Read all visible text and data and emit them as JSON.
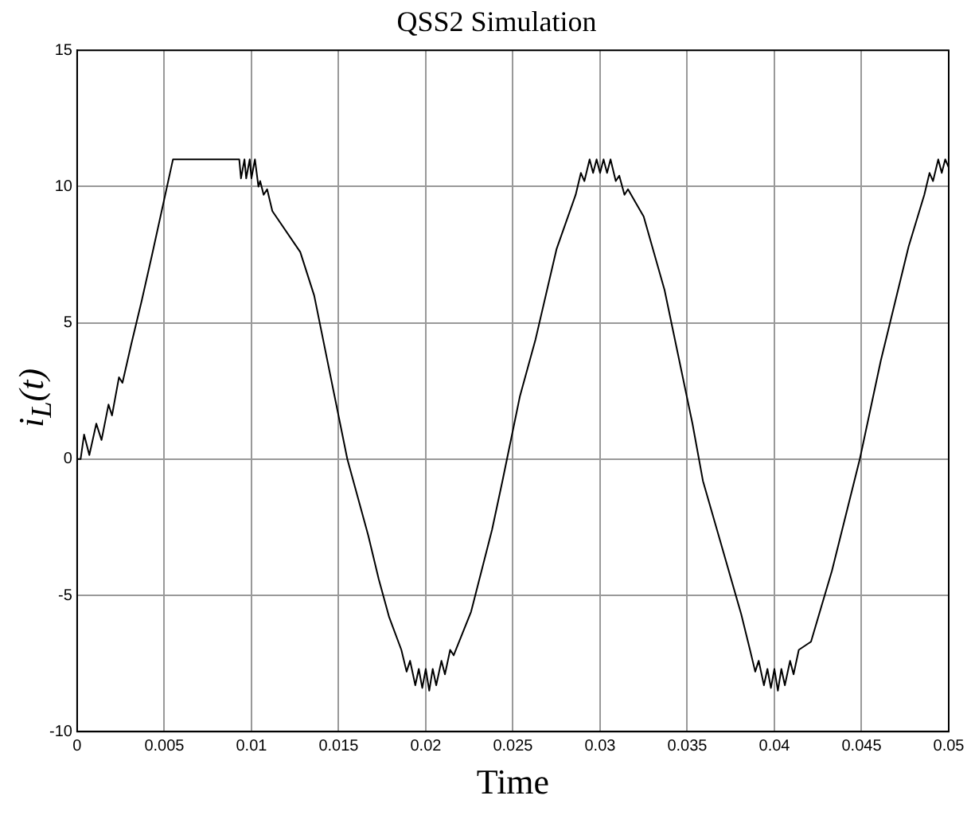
{
  "chart_data": {
    "type": "line",
    "title": "QSS2 Simulation",
    "xlabel": "Time",
    "ylabel": "i$_{L}$(t)",
    "xlim": [
      0,
      0.05
    ],
    "xticks": [
      0,
      0.005,
      0.01,
      0.015,
      0.02,
      0.025,
      0.03,
      0.035,
      0.04,
      0.045,
      0.05
    ],
    "ylim": [
      -10,
      15
    ],
    "yticks": [
      -10,
      -5,
      0,
      5,
      10,
      15
    ],
    "grid": true,
    "marker": "none",
    "line_style": "solid",
    "series": [
      {
        "color": "#000000",
        "x": [
          0,
          0.0002,
          0.0004,
          0.0007,
          0.0011,
          0.0014,
          0.0018,
          0.002,
          0.0024,
          0.0026,
          0.0031,
          0.0037,
          0.0043,
          0.0055,
          0.0093,
          0.0094,
          0.0096,
          0.0097,
          0.0099,
          0.01,
          0.0102,
          0.0104,
          0.0105,
          0.0107,
          0.0109,
          0.0112,
          0.0128,
          0.0136,
          0.0155,
          0.0167,
          0.0173,
          0.0179,
          0.0186,
          0.0189,
          0.0191,
          0.0194,
          0.0196,
          0.0198,
          0.02,
          0.0202,
          0.0204,
          0.0206,
          0.0209,
          0.0211,
          0.0214,
          0.0216,
          0.0226,
          0.0238,
          0.0244,
          0.0254,
          0.0263,
          0.0275,
          0.0286,
          0.0289,
          0.0291,
          0.0294,
          0.0296,
          0.0298,
          0.03,
          0.0302,
          0.0304,
          0.0306,
          0.0309,
          0.0311,
          0.0314,
          0.0316,
          0.0325,
          0.0337,
          0.0353,
          0.0359,
          0.0368,
          0.0381,
          0.0386,
          0.0389,
          0.0391,
          0.0394,
          0.0396,
          0.0398,
          0.04,
          0.0402,
          0.0404,
          0.0406,
          0.0409,
          0.0411,
          0.0414,
          0.0421,
          0.0433,
          0.0449,
          0.0461,
          0.0477,
          0.0486,
          0.0489,
          0.0491,
          0.0494,
          0.0496,
          0.0498,
          0.05
        ],
        "values": [
          0,
          0,
          0.9,
          0.15,
          1.3,
          0.7,
          2,
          1.6,
          3,
          2.8,
          4.2,
          5.8,
          7.5,
          11,
          11,
          10.3,
          11,
          10.3,
          11,
          10.3,
          11,
          10,
          10.2,
          9.7,
          9.9,
          9.1,
          7.6,
          6,
          0,
          -2.8,
          -4.4,
          -5.8,
          -7,
          -7.8,
          -7.4,
          -8.3,
          -7.7,
          -8.4,
          -7.7,
          -8.5,
          -7.7,
          -8.3,
          -7.4,
          -7.9,
          -7,
          -7.2,
          -5.6,
          -2.6,
          -0.8,
          2.3,
          4.4,
          7.7,
          9.7,
          10.5,
          10.2,
          11,
          10.5,
          11,
          10.5,
          11,
          10.5,
          11,
          10.2,
          10.4,
          9.7,
          9.9,
          8.9,
          6.2,
          1.3,
          -0.8,
          -2.8,
          -5.7,
          -7,
          -7.8,
          -7.4,
          -8.3,
          -7.7,
          -8.4,
          -7.7,
          -8.5,
          -7.7,
          -8.3,
          -7.4,
          -7.9,
          -7,
          -6.7,
          -4.1,
          0,
          3.6,
          7.8,
          9.7,
          10.5,
          10.2,
          11,
          10.5,
          11,
          10.7
        ]
      }
    ]
  }
}
